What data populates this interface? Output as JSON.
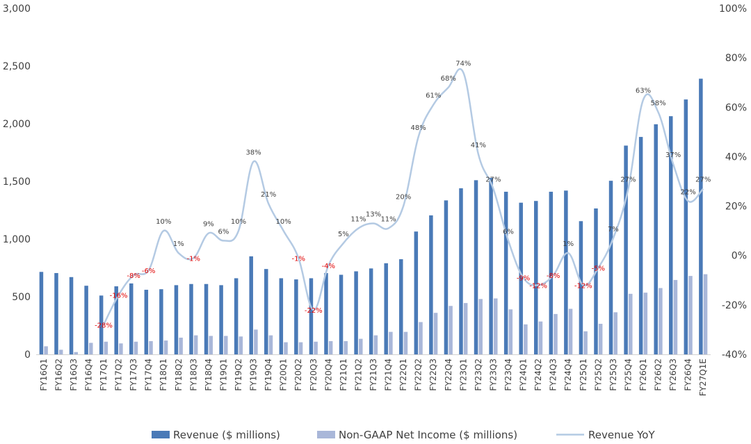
{
  "chart_data": {
    "type": "bar",
    "categories": [
      "FY16Q1",
      "FY16Q2",
      "FY16Q3",
      "FY16Q4",
      "FY17Q1",
      "FY17Q2",
      "FY17Q3",
      "FY17Q4",
      "FY18Q1",
      "FY18Q2",
      "FY18Q3",
      "FY18Q4",
      "FY19Q1",
      "FY19Q2",
      "FY19Q3",
      "FY19Q4",
      "FY20Q1",
      "FY20Q2",
      "FY20Q3",
      "FY20Q4",
      "FY21Q1",
      "FY21Q2",
      "FY21Q3",
      "FY21Q4",
      "FY22Q1",
      "FY22Q2",
      "FY22Q3",
      "FY22Q4",
      "FY23Q1",
      "FY23Q2",
      "FY23Q3",
      "FY23Q4",
      "FY24Q1",
      "FY24Q2",
      "FY24Q3",
      "FY24Q4",
      "FY25Q1",
      "FY25Q2",
      "FY25Q3",
      "FY25Q4",
      "FY26Q1",
      "FY26Q2",
      "FY26Q3",
      "FY26Q4",
      "FY27Q1E"
    ],
    "series": [
      {
        "name": "Revenue ($ millions)",
        "type": "bar",
        "axis": "left",
        "color": "#4a7ab7",
        "values": [
          715,
          705,
          670,
          595,
          510,
          590,
          615,
          560,
          565,
          600,
          610,
          610,
          600,
          660,
          850,
          740,
          660,
          650,
          660,
          705,
          690,
          720,
          745,
          790,
          825,
          1065,
          1205,
          1335,
          1440,
          1510,
          1530,
          1410,
          1315,
          1330,
          1410,
          1420,
          1155,
          1265,
          1505,
          1810,
          1885,
          1995,
          2065,
          2210,
          2390
        ]
      },
      {
        "name": "Non-GAAP Net Income ($ millions)",
        "type": "bar",
        "axis": "left",
        "color": "#a9b7d9",
        "values": [
          70,
          40,
          20,
          100,
          110,
          95,
          110,
          115,
          120,
          145,
          165,
          160,
          160,
          155,
          215,
          165,
          105,
          105,
          110,
          115,
          115,
          135,
          165,
          195,
          195,
          280,
          360,
          420,
          445,
          480,
          485,
          390,
          260,
          285,
          350,
          395,
          200,
          265,
          365,
          525,
          535,
          575,
          645,
          680,
          695
        ]
      },
      {
        "name": "Revenue YoY",
        "type": "line",
        "axis": "right",
        "color": "#b4cae3",
        "values": [
          null,
          null,
          null,
          null,
          -28,
          -16,
          -8,
          -6,
          10,
          1,
          -1,
          9,
          6,
          10,
          38,
          21,
          10,
          -1,
          -22,
          -4,
          5,
          11,
          13,
          11,
          20,
          48,
          61,
          68,
          74,
          41,
          27,
          6,
          -9,
          -12,
          -8,
          1,
          -12,
          -5,
          7,
          27,
          63,
          58,
          37,
          22,
          27
        ],
        "labels": [
          "",
          "",
          "",
          "",
          "-28%",
          "-16%",
          "-8%",
          "-6%",
          "10%",
          "1%",
          "-1%",
          "9%",
          "6%",
          "10%",
          "38%",
          "21%",
          "10%",
          "-1%",
          "-22%",
          "-4%",
          "5%",
          "11%",
          "13%",
          "11%",
          "20%",
          "48%",
          "61%",
          "68%",
          "74%",
          "41%",
          "27%",
          "6%",
          "-9%",
          "-12%",
          "-8%",
          "1%",
          "-12%",
          "-5%",
          "7%",
          "27%",
          "63%",
          "58%",
          "37%",
          "22%",
          "27%"
        ]
      }
    ],
    "y_left": {
      "ylim": [
        0,
        3000
      ],
      "ticks": [
        0,
        500,
        1000,
        1500,
        2000,
        2500,
        3000
      ],
      "tick_labels": [
        "0",
        "500",
        "1,000",
        "1,500",
        "2,000",
        "2,500",
        "3,000"
      ]
    },
    "y_right": {
      "ylim": [
        -40,
        100
      ],
      "ticks": [
        -40,
        -20,
        0,
        20,
        40,
        60,
        80,
        100
      ],
      "tick_labels": [
        "-40%",
        "-20%",
        "0%",
        "20%",
        "40%",
        "60%",
        "80%",
        "100%"
      ]
    },
    "grid": false,
    "legend_position": "bottom",
    "negative_label_color": "#e00000",
    "title": "",
    "xlabel": "",
    "ylabel": ""
  }
}
